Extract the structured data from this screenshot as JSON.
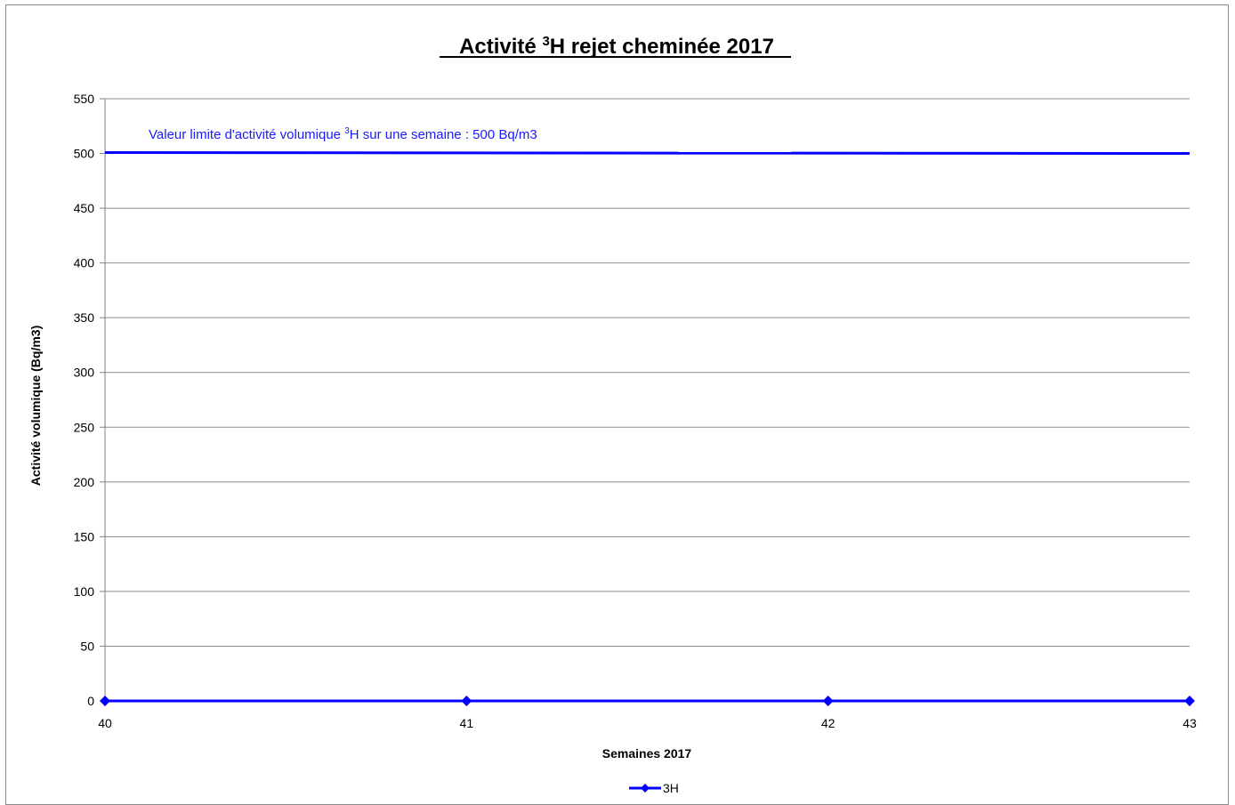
{
  "chart_data": {
    "type": "line",
    "title": {
      "prefix": "Activité ",
      "superscript": "3",
      "suffix": "H rejet cheminée 2017"
    },
    "xlabel": "Semaines 2017",
    "ylabel": "Activité volumique (Bq/m3)",
    "x": [
      40,
      41,
      42,
      43
    ],
    "x_tick_labels": [
      "40",
      "41",
      "42",
      "43"
    ],
    "xlim": [
      40,
      43
    ],
    "ylim": [
      0,
      550
    ],
    "y_ticks": [
      0,
      50,
      100,
      150,
      200,
      250,
      300,
      350,
      400,
      450,
      500,
      550
    ],
    "grid": "horizontal",
    "series": [
      {
        "name": "3H",
        "values": [
          0,
          0,
          0,
          0
        ],
        "color": "#0000ff",
        "marker": "diamond"
      }
    ],
    "limit_line": {
      "value": 500,
      "color": "#0000ff",
      "label": {
        "prefix": "Valeur limite d'activité volumique ",
        "superscript": "3",
        "suffix": "H  sur une semaine : 500 Bq/m3"
      }
    },
    "legend_position": "bottom"
  }
}
